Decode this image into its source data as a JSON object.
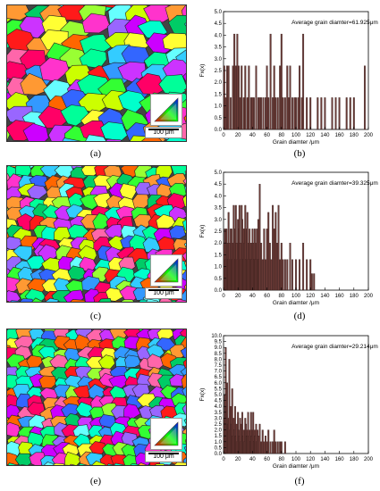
{
  "figure": {
    "labels": [
      "(a)",
      "(b)",
      "(c)",
      "(d)",
      "(e)",
      "(f)"
    ]
  },
  "ebsd_maps": [
    {
      "scale_bar": "100 μm",
      "seed": 7,
      "cols": 9,
      "rows": 9
    },
    {
      "scale_bar": "100 μm",
      "seed": 31,
      "cols": 14,
      "rows": 13
    },
    {
      "scale_bar": "100 μm",
      "seed": 53,
      "cols": 15,
      "rows": 14
    }
  ],
  "colors": {
    "bar_fill": "#6b3b37",
    "bar_stroke": "#2a1513",
    "axis": "#000000"
  },
  "chart_data": [
    {
      "type": "bar",
      "annotation": "Average grain diamter=61.925μm",
      "xlabel": "Grain diamter /μm",
      "ylabel": "Fx(x)",
      "xlim": [
        0,
        200
      ],
      "ylim": [
        0,
        5.0
      ],
      "xticks": [
        0,
        20,
        40,
        60,
        80,
        100,
        120,
        140,
        160,
        180,
        200
      ],
      "yticks": [
        0.0,
        0.5,
        1.0,
        1.5,
        2.0,
        2.5,
        3.0,
        3.5,
        4.0,
        4.5,
        5.0
      ],
      "ytick_labels": [
        "0.0",
        "0.5",
        "1.0",
        "1.5",
        "2.0",
        "2.5",
        "3.0",
        "3.5",
        "4.0",
        "4.5",
        "5.0"
      ],
      "x": [
        1,
        3,
        5,
        7,
        10,
        13,
        15,
        17,
        19,
        21,
        23,
        25,
        28,
        30,
        33,
        35,
        38,
        40,
        42,
        45,
        48,
        50,
        52,
        55,
        58,
        60,
        62,
        65,
        68,
        70,
        72,
        75,
        78,
        80,
        82,
        85,
        88,
        90,
        92,
        95,
        98,
        100,
        103,
        105,
        108,
        110,
        115,
        120,
        130,
        135,
        140,
        150,
        155,
        160,
        170,
        175,
        180,
        195
      ],
      "values": [
        2.7,
        1.35,
        2.7,
        2.7,
        1.35,
        2.7,
        4.05,
        2.7,
        4.05,
        2.7,
        1.35,
        2.7,
        1.35,
        2.7,
        1.35,
        2.7,
        1.35,
        1.35,
        1.35,
        2.7,
        1.35,
        1.35,
        1.35,
        1.35,
        1.35,
        2.7,
        1.35,
        4.05,
        1.35,
        2.7,
        1.35,
        1.35,
        2.7,
        4.05,
        1.35,
        1.35,
        2.7,
        1.35,
        2.7,
        1.35,
        1.35,
        1.35,
        1.35,
        2.7,
        1.35,
        4.05,
        1.35,
        1.35,
        1.35,
        1.35,
        1.35,
        1.35,
        1.35,
        1.35,
        1.35,
        1.35,
        1.35,
        2.7
      ]
    },
    {
      "type": "bar",
      "annotation": "Average grain diamter=39.325μm",
      "xlabel": "Grain diamter /μm",
      "ylabel": "Fx(x)",
      "xlim": [
        0,
        200
      ],
      "ylim": [
        0,
        5.0
      ],
      "xticks": [
        0,
        20,
        40,
        60,
        80,
        100,
        120,
        140,
        160,
        180,
        200
      ],
      "yticks": [
        0.0,
        0.5,
        1.0,
        1.5,
        2.0,
        2.5,
        3.0,
        3.5,
        4.0,
        4.5,
        5.0
      ],
      "ytick_labels": [
        "0.0",
        "0.5",
        "1.0",
        "1.5",
        "2.0",
        "2.5",
        "3.0",
        "3.5",
        "4.0",
        "4.5",
        "5.0"
      ],
      "x": [
        1,
        2,
        3,
        4,
        5,
        6,
        7,
        8,
        9,
        10,
        11,
        12,
        13,
        14,
        15,
        16,
        17,
        18,
        19,
        20,
        21,
        22,
        23,
        24,
        25,
        26,
        27,
        28,
        29,
        30,
        31,
        32,
        33,
        34,
        35,
        36,
        37,
        38,
        39,
        40,
        41,
        42,
        43,
        44,
        45,
        46,
        47,
        48,
        49,
        50,
        52,
        54,
        56,
        58,
        60,
        62,
        64,
        66,
        68,
        70,
        72,
        74,
        76,
        78,
        80,
        82,
        85,
        88,
        92,
        95,
        100,
        105,
        110,
        115,
        120,
        122,
        125
      ],
      "values": [
        2.0,
        2.6,
        1.3,
        2.6,
        2.0,
        1.3,
        3.3,
        2.0,
        1.3,
        2.6,
        2.6,
        1.3,
        2.0,
        3.6,
        2.6,
        1.3,
        3.6,
        2.0,
        1.3,
        3.0,
        2.6,
        3.6,
        2.0,
        1.3,
        3.6,
        3.0,
        1.3,
        2.6,
        2.0,
        3.6,
        1.3,
        2.6,
        3.3,
        1.3,
        2.0,
        2.6,
        1.3,
        2.0,
        1.3,
        2.6,
        2.0,
        1.3,
        2.6,
        1.3,
        2.0,
        2.6,
        1.3,
        3.0,
        1.3,
        4.5,
        2.0,
        1.3,
        2.6,
        1.3,
        2.6,
        3.3,
        2.0,
        1.3,
        3.6,
        2.6,
        3.3,
        2.0,
        3.6,
        1.3,
        2.0,
        1.3,
        1.3,
        1.3,
        2.0,
        1.3,
        1.3,
        1.3,
        2.0,
        1.3,
        1.3,
        0.7,
        0.7
      ]
    },
    {
      "type": "bar",
      "annotation": "Average grain diamter=29.214μm",
      "xlabel": "Grain diamter /μm",
      "ylabel": "Fx(x)",
      "xlim": [
        0,
        200
      ],
      "ylim": [
        0,
        10.0
      ],
      "xticks": [
        0,
        20,
        40,
        60,
        80,
        100,
        120,
        140,
        160,
        180,
        200
      ],
      "yticks": [
        0.0,
        0.5,
        1.0,
        1.5,
        2.0,
        2.5,
        3.0,
        3.5,
        4.0,
        4.5,
        5.0,
        5.5,
        6.0,
        6.5,
        7.0,
        7.5,
        8.0,
        8.5,
        9.0,
        9.5,
        10.0
      ],
      "ytick_labels": [
        "0.0",
        "0.5",
        "1.0",
        "1.5",
        "2.0",
        "2.5",
        "3.0",
        "3.5",
        "4.0",
        "4.5",
        "5.0",
        "5.5",
        "6.0",
        "6.5",
        "7.0",
        "7.5",
        "8.0",
        "8.5",
        "9.0",
        "9.5",
        "10.0"
      ],
      "x": [
        1,
        2,
        3,
        4,
        5,
        6,
        7,
        8,
        9,
        10,
        11,
        12,
        13,
        14,
        15,
        16,
        17,
        18,
        19,
        20,
        21,
        22,
        23,
        24,
        25,
        26,
        27,
        28,
        29,
        30,
        31,
        32,
        33,
        34,
        35,
        36,
        37,
        38,
        39,
        40,
        41,
        42,
        43,
        44,
        45,
        46,
        47,
        48,
        50,
        52,
        54,
        56,
        58,
        60,
        62,
        65,
        68,
        70,
        72,
        75,
        78,
        80,
        85
      ],
      "values": [
        3.0,
        5.0,
        9.0,
        4.0,
        6.0,
        2.5,
        3.0,
        8.0,
        2.0,
        4.0,
        2.5,
        5.5,
        1.5,
        3.0,
        2.0,
        4.0,
        1.5,
        2.5,
        1.0,
        3.5,
        2.0,
        1.5,
        3.0,
        1.0,
        2.5,
        3.5,
        1.5,
        2.0,
        1.0,
        3.0,
        2.5,
        1.5,
        2.0,
        3.5,
        1.5,
        2.0,
        1.0,
        3.5,
        1.5,
        2.0,
        3.5,
        1.0,
        2.0,
        1.5,
        2.5,
        1.0,
        2.0,
        1.5,
        2.5,
        1.0,
        2.0,
        1.0,
        1.5,
        1.0,
        2.0,
        1.0,
        1.0,
        2.0,
        1.0,
        1.0,
        1.0,
        1.0,
        1.0
      ]
    }
  ]
}
